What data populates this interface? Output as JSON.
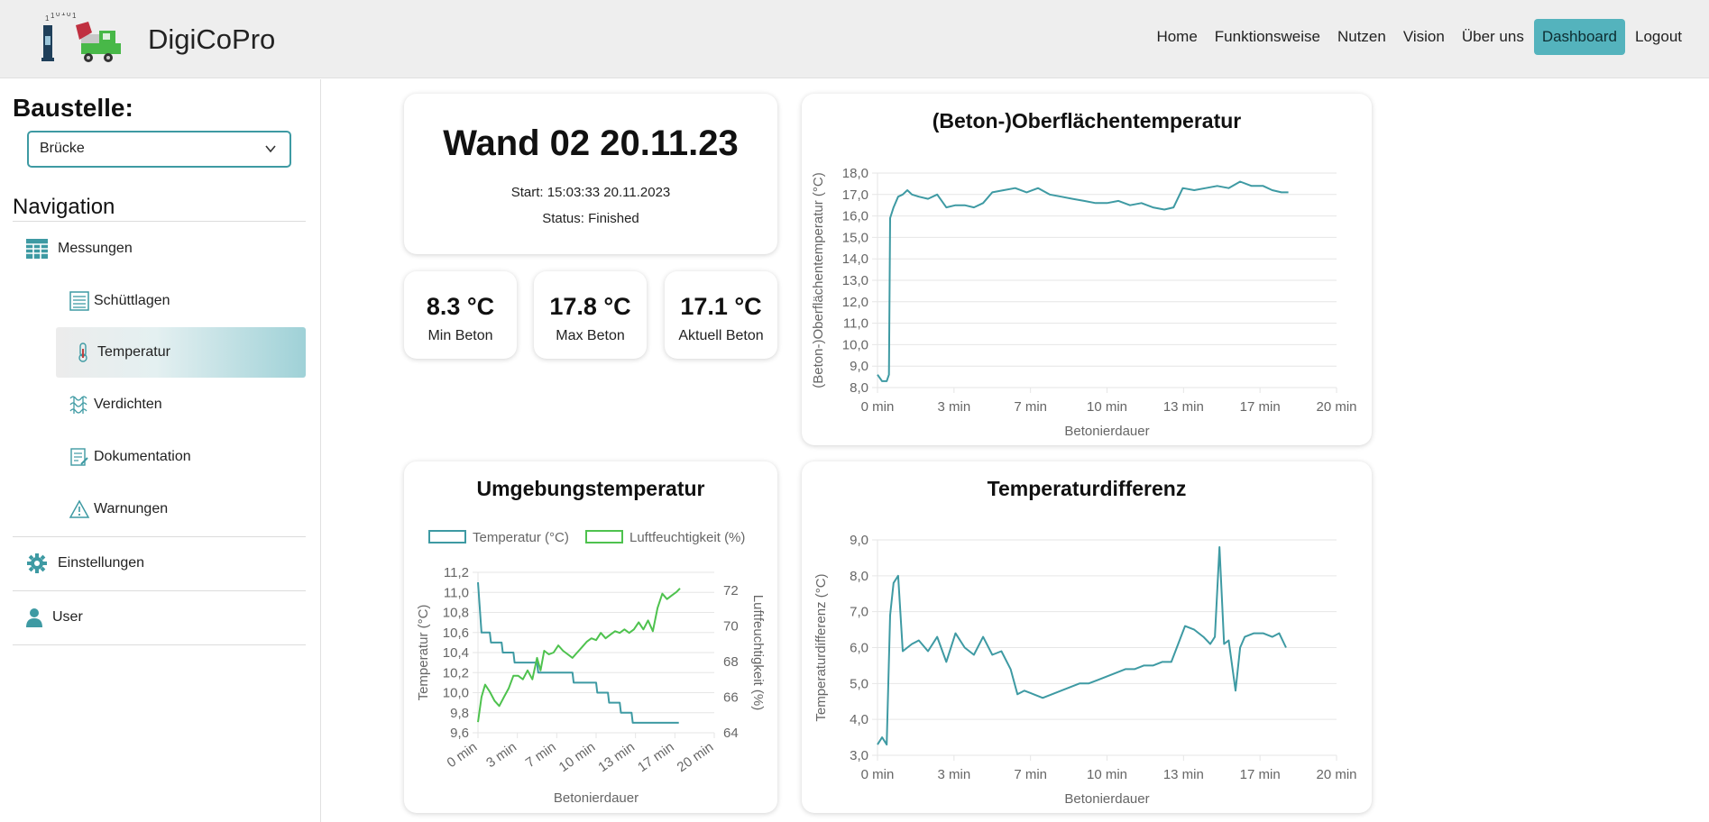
{
  "header": {
    "brand": "DigiCoPro",
    "nav": [
      "Home",
      "Funktionsweise",
      "Nutzen",
      "Vision",
      "Über uns",
      "Dashboard",
      "Logout"
    ],
    "active_nav": "Dashboard"
  },
  "sidebar": {
    "baustelle_label": "Baustelle:",
    "baustelle_value": "Brücke",
    "navigation_label": "Navigation",
    "items": [
      {
        "label": "Messungen",
        "icon": "grid-table-icon"
      },
      {
        "label": "Schüttlagen",
        "icon": "layers-list-icon"
      },
      {
        "label": "Temperatur",
        "icon": "thermometer-icon"
      },
      {
        "label": "Verdichten",
        "icon": "vibration-icon"
      },
      {
        "label": "Dokumentation",
        "icon": "document-edit-icon"
      },
      {
        "label": "Warnungen",
        "icon": "warning-triangle-icon"
      },
      {
        "label": "Einstellungen",
        "icon": "gear-icon"
      },
      {
        "label": "User",
        "icon": "user-icon"
      }
    ],
    "active_item": "Temperatur",
    "accent": "#3e9aa3"
  },
  "summary": {
    "title": "Wand 02 20.11.23",
    "start": "Start: 15:03:33 20.11.2023",
    "status": "Status: Finished"
  },
  "stats": [
    {
      "value": "8.3 °C",
      "label": "Min Beton"
    },
    {
      "value": "17.8 °C",
      "label": "Max Beton"
    },
    {
      "value": "17.1 °C",
      "label": "Aktuell Beton"
    }
  ],
  "chart_data": [
    {
      "type": "line",
      "title": "(Beton-)Oberflächentemperatur",
      "xlabel": "Betonierdauer",
      "ylabel": "(Beton-)Oberflächentemperatur (°C)",
      "xticks": [
        "0 min",
        "3 min",
        "7 min",
        "10 min",
        "13 min",
        "17 min",
        "20 min"
      ],
      "yticks": [
        "8,0",
        "9,0",
        "10,0",
        "11,0",
        "12,0",
        "13,0",
        "14,0",
        "15,0",
        "16,0",
        "17,0",
        "18,0"
      ],
      "xlim": [
        0,
        20
      ],
      "ylim": [
        8,
        18
      ],
      "color": "#3e9aa3",
      "series": [
        {
          "x": [
            0,
            0.2,
            0.4,
            0.5,
            0.55,
            0.7,
            0.9,
            1.1,
            1.3,
            1.5,
            1.8,
            2.2,
            2.6,
            3.0,
            3.4,
            3.8,
            4.2,
            4.6,
            5.0,
            5.5,
            6.0,
            6.5,
            7.0,
            7.5,
            8.0,
            8.5,
            9.0,
            9.5,
            10.0,
            10.5,
            11.0,
            11.5,
            12.0,
            12.5,
            12.9,
            13.3,
            13.8,
            14.3,
            14.8,
            15.3,
            15.8,
            16.3,
            16.8,
            17.2,
            17.6,
            17.9
          ],
          "y": [
            8.6,
            8.3,
            8.3,
            8.6,
            15.9,
            16.4,
            16.9,
            17.0,
            17.2,
            17.0,
            16.9,
            16.8,
            17.0,
            16.4,
            16.5,
            16.5,
            16.4,
            16.6,
            17.1,
            17.2,
            17.3,
            17.1,
            17.3,
            17.0,
            16.9,
            16.8,
            16.7,
            16.6,
            16.6,
            16.7,
            16.5,
            16.6,
            16.4,
            16.3,
            16.4,
            17.3,
            17.2,
            17.3,
            17.4,
            17.3,
            17.6,
            17.4,
            17.4,
            17.2,
            17.1,
            17.1
          ]
        }
      ]
    },
    {
      "type": "line",
      "title": "Umgebungstemperatur",
      "xlabel": "Betonierdauer",
      "ylabel": "Temperatur (°C)",
      "ylabel_right": "Luftfeuchtigkeit (%)",
      "xticks": [
        "0 min",
        "3 min",
        "7 min",
        "10 min",
        "13 min",
        "17 min",
        "20 min"
      ],
      "yticks": [
        "9,6",
        "9,8",
        "10,0",
        "10,2",
        "10,4",
        "10,6",
        "10,8",
        "11,0",
        "11,2"
      ],
      "yticks_right": [
        "64",
        "66",
        "68",
        "70",
        "72"
      ],
      "xlim": [
        0,
        20
      ],
      "ylim": [
        9.6,
        11.2
      ],
      "ylim_right": [
        64,
        73
      ],
      "legend": "top",
      "series": [
        {
          "name": "Temperatur (°C)",
          "color": "#3e9aa3",
          "axis": "left",
          "x": [
            0,
            0.3,
            1.0,
            1.1,
            2.0,
            2.1,
            3.0,
            3.1,
            4.0,
            4.1,
            5.0,
            5.1,
            6.0,
            6.1,
            7.0,
            7.1,
            8.0,
            8.1,
            9.0,
            9.1,
            10.0,
            10.1,
            11.0,
            11.1,
            12.0,
            12.1,
            13.0,
            13.1,
            14.0,
            14.1,
            15.0,
            15.1,
            16.0,
            17.0
          ],
          "y": [
            11.1,
            10.6,
            10.6,
            10.5,
            10.5,
            10.4,
            10.4,
            10.3,
            10.3,
            10.3,
            10.3,
            10.2,
            10.2,
            10.2,
            10.2,
            10.2,
            10.2,
            10.1,
            10.1,
            10.1,
            10.1,
            10.0,
            10.0,
            9.9,
            9.9,
            9.8,
            9.8,
            9.7,
            9.7,
            9.7,
            9.7,
            9.7,
            9.7,
            9.7
          ]
        },
        {
          "name": "Luftfeuchtigkeit (%)",
          "color": "#4ec24e",
          "axis": "right",
          "x": [
            0,
            0.3,
            0.6,
            1.0,
            1.4,
            1.8,
            2.2,
            2.6,
            3.0,
            3.4,
            3.8,
            4.2,
            4.6,
            5.0,
            5.3,
            5.6,
            6.0,
            6.4,
            6.8,
            7.2,
            7.6,
            8.0,
            8.4,
            8.8,
            9.2,
            9.6,
            10.0,
            10.4,
            10.8,
            11.2,
            11.6,
            12.0,
            12.4,
            12.8,
            13.2,
            13.6,
            14.0,
            14.4,
            14.8,
            15.2,
            15.6,
            16.0,
            16.4,
            16.8,
            17.1
          ],
          "y": [
            64.6,
            66.0,
            66.7,
            66.3,
            65.8,
            65.5,
            66.0,
            66.5,
            67.2,
            67.2,
            67.0,
            67.5,
            67.0,
            68.2,
            67.5,
            68.6,
            68.4,
            68.5,
            68.9,
            68.6,
            68.4,
            68.2,
            68.5,
            68.8,
            69.1,
            69.3,
            69.2,
            69.6,
            69.3,
            69.5,
            69.7,
            69.6,
            69.8,
            69.6,
            69.8,
            70.2,
            69.8,
            70.3,
            69.7,
            71.0,
            71.8,
            71.5,
            71.7,
            71.9,
            72.1
          ]
        }
      ]
    },
    {
      "type": "line",
      "title": "Temperaturdifferenz",
      "xlabel": "Betonierdauer",
      "ylabel": "Temperaturdifferenz (°C)",
      "xticks": [
        "0 min",
        "3 min",
        "7 min",
        "10 min",
        "13 min",
        "17 min",
        "20 min"
      ],
      "yticks": [
        "3,0",
        "4,0",
        "5,0",
        "6,0",
        "7,0",
        "8,0",
        "9,0"
      ],
      "xlim": [
        0,
        20
      ],
      "ylim": [
        3,
        9
      ],
      "color": "#3e9aa3",
      "series": [
        {
          "x": [
            0,
            0.2,
            0.4,
            0.55,
            0.7,
            0.9,
            1.1,
            1.3,
            1.5,
            1.8,
            2.2,
            2.6,
            3.0,
            3.4,
            3.8,
            4.2,
            4.6,
            5.0,
            5.4,
            5.8,
            6.1,
            6.4,
            6.8,
            7.2,
            7.6,
            8.0,
            8.4,
            8.8,
            9.2,
            9.6,
            10.0,
            10.4,
            10.8,
            11.2,
            11.6,
            12.0,
            12.4,
            12.8,
            13.1,
            13.4,
            13.8,
            14.2,
            14.5,
            14.7,
            14.9,
            15.1,
            15.3,
            15.6,
            15.8,
            16.0,
            16.4,
            16.8,
            17.2,
            17.5,
            17.8
          ],
          "y": [
            3.3,
            3.5,
            3.3,
            6.9,
            7.8,
            8.0,
            5.9,
            6.0,
            6.1,
            6.2,
            5.9,
            6.3,
            5.6,
            6.4,
            6.0,
            5.8,
            6.3,
            5.8,
            5.9,
            5.4,
            4.7,
            4.8,
            4.7,
            4.6,
            4.7,
            4.8,
            4.9,
            5.0,
            5.0,
            5.1,
            5.2,
            5.3,
            5.4,
            5.4,
            5.5,
            5.5,
            5.6,
            5.6,
            6.1,
            6.6,
            6.5,
            6.3,
            6.1,
            6.3,
            8.8,
            6.1,
            6.2,
            4.8,
            6.0,
            6.3,
            6.4,
            6.4,
            6.3,
            6.4,
            6.0
          ]
        }
      ]
    }
  ]
}
